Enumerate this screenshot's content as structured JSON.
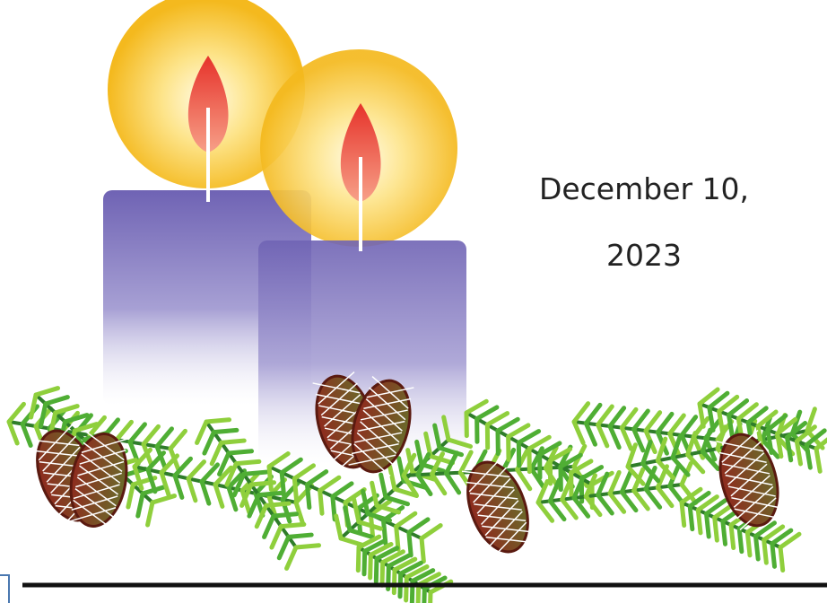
{
  "date": {
    "lines": [
      "December 10,",
      "2023"
    ]
  }
}
